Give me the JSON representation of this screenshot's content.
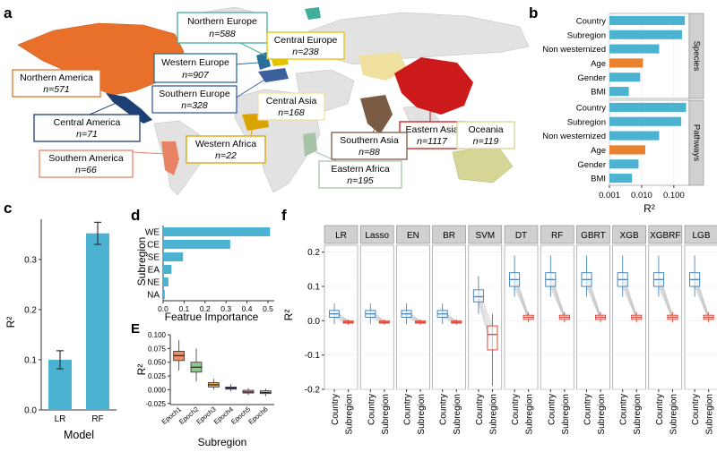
{
  "panel_labels": {
    "a": "a",
    "b": "b",
    "c": "c",
    "d": "d",
    "e": "E",
    "f": "f"
  },
  "map": {
    "region_labels": [
      {
        "name": "Northern Europe",
        "n": "n=588",
        "color": "#3fae9c"
      },
      {
        "name": "Central Europe",
        "n": "n=238",
        "color": "#e3c300"
      },
      {
        "name": "Western Europe",
        "n": "n=907",
        "color": "#2b6f9c"
      },
      {
        "name": "Northern America",
        "n": "n=571",
        "color": "#e8702a"
      },
      {
        "name": "Southern Europe",
        "n": "n=328",
        "color": "#3a5f9c"
      },
      {
        "name": "Central Asia",
        "n": "n=168",
        "color": "#efe0a0"
      },
      {
        "name": "Eastern Asia",
        "n": "n=1117",
        "color": "#cc1a1a"
      },
      {
        "name": "Central America",
        "n": "n=71",
        "color": "#1e3f74"
      },
      {
        "name": "Western Africa",
        "n": "n=22",
        "color": "#d9a300"
      },
      {
        "name": "Southern Asia",
        "n": "n=88",
        "color": "#7a5c45"
      },
      {
        "name": "Oceania",
        "n": "n=119",
        "color": "#d5d596"
      },
      {
        "name": "Southern America",
        "n": "n=66",
        "color": "#e88366"
      },
      {
        "name": "Eastern Africa",
        "n": "n=195",
        "color": "#a8c4a8"
      }
    ]
  },
  "chart_data": [
    {
      "id": "b",
      "type": "bar",
      "orientation": "horizontal",
      "xscale": "log",
      "xlabel": "R²",
      "xticks": [
        "0.001",
        "0.010",
        "0.100"
      ],
      "xlim": [
        0.001,
        0.3
      ],
      "facets": [
        {
          "strip": "Species",
          "categories": [
            "Country",
            "Subregion",
            "Non westernized",
            "Age",
            "Gender",
            "BMI"
          ],
          "values": [
            0.22,
            0.18,
            0.035,
            0.011,
            0.009,
            0.004
          ]
        },
        {
          "strip": "Pathways",
          "categories": [
            "Country",
            "Subregion",
            "Non westernized",
            "Age",
            "Gender",
            "BMI"
          ],
          "values": [
            0.24,
            0.17,
            0.035,
            0.013,
            0.008,
            0.005
          ]
        }
      ],
      "colors": {
        "default": "#4bb3d1",
        "Age": "#e8822e"
      }
    },
    {
      "id": "c",
      "type": "bar",
      "categories": [
        "LR",
        "RF"
      ],
      "values": [
        0.1,
        0.352
      ],
      "errors": [
        0.018,
        0.022
      ],
      "ylabel": "R²",
      "xlabel": "Model",
      "ylim": [
        0,
        0.38
      ],
      "yticks": [
        "0.0",
        "0.1",
        "0.2",
        "0.3"
      ],
      "color": "#4bb3d1"
    },
    {
      "id": "d",
      "type": "bar",
      "orientation": "horizontal",
      "categories": [
        "WE",
        "CE",
        "SE",
        "EA",
        "NE",
        "NA"
      ],
      "values": [
        0.51,
        0.32,
        0.095,
        0.04,
        0.025,
        0.008
      ],
      "xlabel": "Featrue Importance",
      "ylabel": "Subregion",
      "xticks": [
        "0.0",
        "0.1",
        "0.2",
        "0.3",
        "0.4",
        "0.5"
      ],
      "xlim": [
        0,
        0.53
      ],
      "color": "#4bb3d1"
    },
    {
      "id": "e",
      "type": "box",
      "categories": [
        "Epoch1",
        "Epoch2",
        "Epoch3",
        "Epoch4",
        "Epoch5",
        "Epoch6"
      ],
      "boxes": [
        {
          "q1": 0.053,
          "med": 0.062,
          "q3": 0.07,
          "lo": 0.035,
          "hi": 0.09,
          "color": "#e8906a"
        },
        {
          "q1": 0.032,
          "med": 0.041,
          "q3": 0.05,
          "lo": 0.015,
          "hi": 0.075,
          "color": "#8fc88f"
        },
        {
          "q1": 0.005,
          "med": 0.009,
          "q3": 0.013,
          "lo": 0.0,
          "hi": 0.02,
          "color": "#f0a84a"
        },
        {
          "q1": 0.001,
          "med": 0.003,
          "q3": 0.005,
          "lo": -0.003,
          "hi": 0.01,
          "color": "#8a88c8"
        },
        {
          "q1": -0.006,
          "med": -0.004,
          "q3": -0.001,
          "lo": -0.01,
          "hi": 0.003,
          "color": "#f0b0c8"
        },
        {
          "q1": -0.007,
          "med": -0.005,
          "q3": -0.002,
          "lo": -0.012,
          "hi": 0.002,
          "color": "#e8d070"
        }
      ],
      "ylabel": "R²",
      "xlabel": "Subregion",
      "ylim": [
        -0.027,
        0.1
      ],
      "yticks": [
        "0.100",
        "0.075",
        "0.050",
        "0.025",
        "0.000",
        "-0.025"
      ]
    },
    {
      "id": "f",
      "type": "box",
      "ylabel": "R²",
      "ylim": [
        -0.2,
        0.22
      ],
      "yticks": [
        "0.2",
        "0.1",
        "0.0",
        "-0.1",
        "-0.2"
      ],
      "x_categories": [
        "Country",
        "Subregion"
      ],
      "facets": [
        {
          "strip": "LR",
          "country": {
            "q1": 0.01,
            "med": 0.02,
            "q3": 0.03,
            "lo": -0.01,
            "hi": 0.05
          },
          "subregion": {
            "q1": -0.007,
            "med": -0.004,
            "q3": -0.001,
            "lo": -0.012,
            "hi": 0.004
          }
        },
        {
          "strip": "Lasso",
          "country": {
            "q1": 0.01,
            "med": 0.02,
            "q3": 0.03,
            "lo": -0.01,
            "hi": 0.05
          },
          "subregion": {
            "q1": -0.007,
            "med": -0.004,
            "q3": -0.001,
            "lo": -0.012,
            "hi": 0.004
          }
        },
        {
          "strip": "EN",
          "country": {
            "q1": 0.01,
            "med": 0.02,
            "q3": 0.03,
            "lo": -0.01,
            "hi": 0.05
          },
          "subregion": {
            "q1": -0.007,
            "med": -0.004,
            "q3": -0.001,
            "lo": -0.012,
            "hi": 0.004
          }
        },
        {
          "strip": "BR",
          "country": {
            "q1": 0.01,
            "med": 0.02,
            "q3": 0.03,
            "lo": -0.01,
            "hi": 0.05
          },
          "subregion": {
            "q1": -0.007,
            "med": -0.004,
            "q3": -0.001,
            "lo": -0.012,
            "hi": 0.004
          }
        },
        {
          "strip": "SVM",
          "country": {
            "q1": 0.055,
            "med": 0.07,
            "q3": 0.09,
            "lo": 0.02,
            "hi": 0.13
          },
          "subregion": {
            "q1": -0.085,
            "med": -0.04,
            "q3": -0.015,
            "lo": -0.19,
            "hi": 0.02
          }
        },
        {
          "strip": "DT",
          "country": {
            "q1": 0.1,
            "med": 0.12,
            "q3": 0.14,
            "lo": 0.07,
            "hi": 0.19
          },
          "subregion": {
            "q1": 0.004,
            "med": 0.01,
            "q3": 0.016,
            "lo": -0.005,
            "hi": 0.025
          }
        },
        {
          "strip": "RF",
          "country": {
            "q1": 0.1,
            "med": 0.12,
            "q3": 0.14,
            "lo": 0.07,
            "hi": 0.19
          },
          "subregion": {
            "q1": 0.004,
            "med": 0.01,
            "q3": 0.016,
            "lo": -0.005,
            "hi": 0.025
          }
        },
        {
          "strip": "GBRT",
          "country": {
            "q1": 0.1,
            "med": 0.12,
            "q3": 0.14,
            "lo": 0.07,
            "hi": 0.19
          },
          "subregion": {
            "q1": 0.004,
            "med": 0.01,
            "q3": 0.016,
            "lo": -0.005,
            "hi": 0.025
          }
        },
        {
          "strip": "XGB",
          "country": {
            "q1": 0.1,
            "med": 0.12,
            "q3": 0.14,
            "lo": 0.07,
            "hi": 0.19
          },
          "subregion": {
            "q1": 0.004,
            "med": 0.01,
            "q3": 0.016,
            "lo": -0.005,
            "hi": 0.025
          }
        },
        {
          "strip": "XGBRF",
          "country": {
            "q1": 0.1,
            "med": 0.12,
            "q3": 0.14,
            "lo": 0.07,
            "hi": 0.19
          },
          "subregion": {
            "q1": 0.004,
            "med": 0.01,
            "q3": 0.016,
            "lo": -0.005,
            "hi": 0.025
          }
        },
        {
          "strip": "LGB",
          "country": {
            "q1": 0.1,
            "med": 0.12,
            "q3": 0.14,
            "lo": 0.07,
            "hi": 0.19
          },
          "subregion": {
            "q1": 0.004,
            "med": 0.01,
            "q3": 0.016,
            "lo": -0.005,
            "hi": 0.025
          }
        }
      ],
      "colors": {
        "country": "#4a86b8",
        "subregion": "#d9483a"
      }
    }
  ]
}
